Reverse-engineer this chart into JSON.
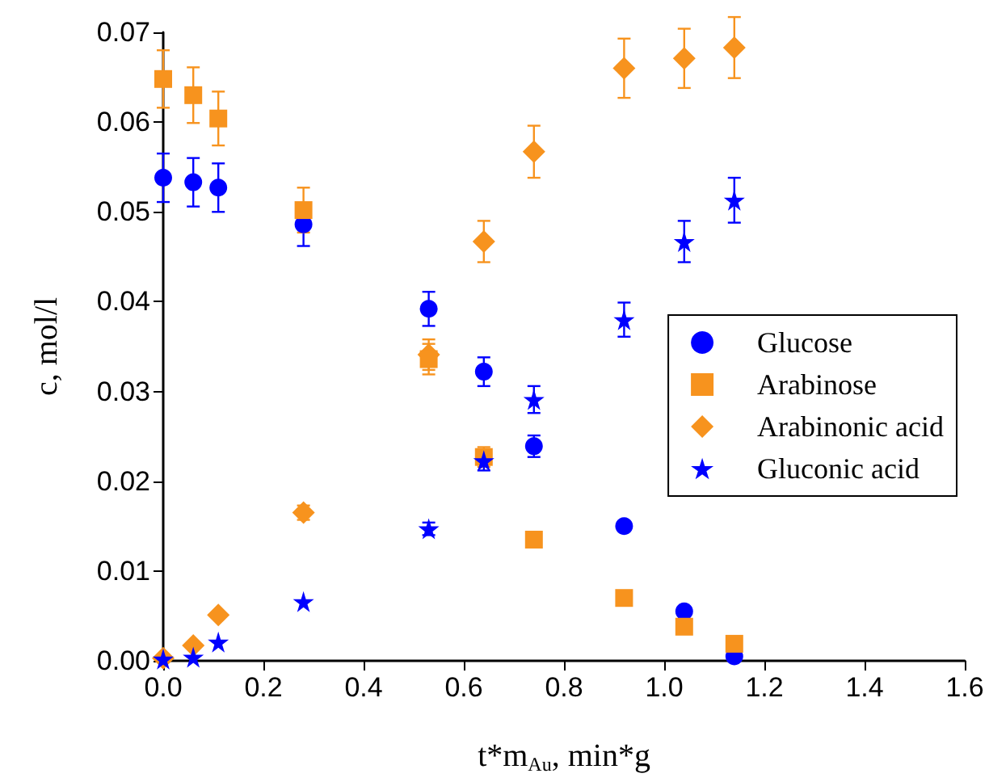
{
  "chart_data": {
    "type": "scatter",
    "xlabel": "t*m$_{Au}$, min*g",
    "ylabel": "c, mol/l",
    "x": [
      0,
      0.06,
      0.11,
      0.28,
      0.53,
      0.64,
      0.74,
      0.92,
      1.04,
      1.14
    ],
    "series": [
      {
        "name": "Glucose",
        "color": "#0000ff",
        "marker": "circle",
        "values": [
          0.0538,
          0.0533,
          0.0527,
          0.0486,
          0.0392,
          0.0322,
          0.0239,
          0.015,
          0.0055,
          0.0005
        ],
        "errors": [
          0.0027,
          0.0027,
          0.0027,
          0.0024,
          0.0019,
          0.0016,
          0.0012,
          null,
          null,
          null
        ]
      },
      {
        "name": "Arabinose",
        "color": "#f7931e",
        "marker": "square",
        "values": [
          0.0648,
          0.063,
          0.0604,
          0.0502,
          0.0336,
          0.0227,
          0.0135,
          0.007,
          0.0038,
          0.0019
        ],
        "errors": [
          0.0032,
          0.0031,
          0.003,
          0.0025,
          0.0017,
          0.0011,
          null,
          null,
          null,
          null
        ]
      },
      {
        "name": "Arabinonic acid",
        "color": "#f7931e",
        "marker": "diamond",
        "values": [
          0.0003,
          0.0017,
          0.0051,
          0.0165,
          0.0341,
          0.0467,
          0.0567,
          0.066,
          0.0671,
          0.0683
        ],
        "errors": [
          null,
          null,
          null,
          0.0008,
          0.0017,
          0.0023,
          0.0029,
          0.0033,
          0.0033,
          0.0034
        ]
      },
      {
        "name": "Gluconic acid",
        "color": "#0000ff",
        "marker": "star",
        "values": [
          0.0002,
          0.0004,
          0.0021,
          0.0066,
          0.0147,
          0.0223,
          0.0291,
          0.038,
          0.0467,
          0.0513
        ],
        "errors": [
          null,
          null,
          null,
          null,
          0.0007,
          0.0011,
          0.0015,
          0.0019,
          0.0023,
          0.0025
        ]
      }
    ],
    "xlim": [
      0,
      1.6
    ],
    "xticks": [
      {
        "value": 0,
        "label": "0.0"
      },
      0.2,
      0.4,
      0.6,
      0.8,
      {
        "value": 1,
        "label": "1.0"
      },
      1.2,
      1.4,
      1.6
    ],
    "ylim": [
      0,
      0.07
    ],
    "yticks": [
      {
        "value": 0,
        "label": "0.00"
      },
      0.01,
      0.02,
      0.03,
      0.04,
      0.05,
      0.06,
      0.07
    ],
    "grid": false,
    "legend": "right"
  }
}
